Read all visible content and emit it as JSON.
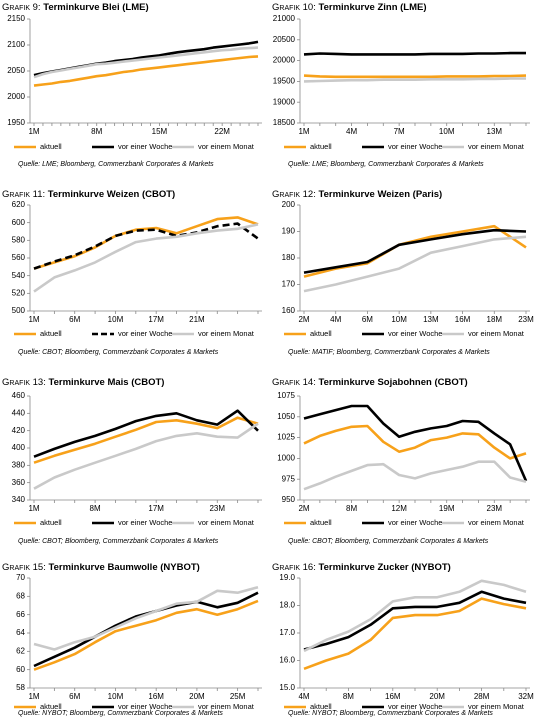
{
  "chart_data": [
    {
      "type": "line",
      "label": "Grafik 9:",
      "title": "Terminkurve Blei (LME)",
      "source": "Quelle: LME; Bloomberg, Commerzbank Corporates & Markets",
      "categories": [
        "1M",
        null,
        null,
        null,
        null,
        null,
        null,
        "8M",
        null,
        null,
        null,
        null,
        null,
        null,
        "15M",
        null,
        null,
        null,
        null,
        null,
        null,
        "22M",
        null,
        null,
        null,
        null
      ],
      "ylim": [
        1950,
        2150
      ],
      "yticks": [
        1950,
        2000,
        2050,
        2100,
        2150
      ],
      "series": [
        {
          "name": "aktuell",
          "color": "#f7a11a",
          "values": [
            2022,
            2024,
            2026,
            2029,
            2031,
            2034,
            2037,
            2040,
            2042,
            2045,
            2048,
            2050,
            2053,
            2055,
            2057,
            2059,
            2061,
            2063,
            2065,
            2067,
            2069,
            2071,
            2073,
            2075,
            2077,
            2078
          ]
        },
        {
          "name": "vor einer Woche",
          "color": "#000000",
          "values": [
            2042,
            2046,
            2049,
            2052,
            2055,
            2058,
            2061,
            2064,
            2066,
            2069,
            2071,
            2073,
            2076,
            2078,
            2080,
            2083,
            2086,
            2088,
            2090,
            2092,
            2095,
            2097,
            2099,
            2101,
            2103,
            2106
          ]
        },
        {
          "name": "vor einem Monat",
          "color": "#c9c9c9",
          "values": [
            2038,
            2044,
            2048,
            2051,
            2054,
            2057,
            2060,
            2063,
            2064,
            2066,
            2068,
            2070,
            2072,
            2074,
            2076,
            2078,
            2080,
            2082,
            2084,
            2086,
            2088,
            2090,
            2091,
            2093,
            2094,
            2095
          ]
        }
      ]
    },
    {
      "type": "line",
      "label": "Grafik 10:",
      "title": "Terminkurve Zinn (LME)",
      "source": "Quelle: LME; Bloomberg, Commerzbank Corporates & Markets",
      "categories": [
        "1M",
        null,
        null,
        "4M",
        null,
        null,
        "7M",
        null,
        null,
        "10M",
        null,
        null,
        "13M",
        null,
        null
      ],
      "ylim": [
        18500,
        21000
      ],
      "yticks": [
        18500,
        19000,
        19500,
        20000,
        20500,
        21000
      ],
      "series": [
        {
          "name": "aktuell",
          "color": "#f7a11a",
          "values": [
            19640,
            19620,
            19610,
            19610,
            19610,
            19610,
            19610,
            19610,
            19610,
            19620,
            19620,
            19620,
            19630,
            19630,
            19640
          ]
        },
        {
          "name": "vor einer Woche",
          "color": "#000000",
          "values": [
            20150,
            20170,
            20160,
            20150,
            20150,
            20150,
            20150,
            20150,
            20160,
            20160,
            20160,
            20170,
            20170,
            20180,
            20180
          ]
        },
        {
          "name": "vor einem Monat",
          "color": "#c9c9c9",
          "values": [
            19500,
            19510,
            19520,
            19530,
            19530,
            19540,
            19540,
            19540,
            19550,
            19550,
            19550,
            19560,
            19560,
            19570,
            19570
          ]
        }
      ]
    },
    {
      "type": "line",
      "label": "Grafik 11:",
      "title": "Terminkurve Weizen (CBOT)",
      "source": "Quelle: CBOT; Bloomberg, Commerzbank Corporates & Markets",
      "categories": [
        "1M",
        null,
        "6M",
        null,
        "10M",
        null,
        "17M",
        null,
        "21M",
        null,
        null,
        null
      ],
      "ylim": [
        500,
        620
      ],
      "yticks": [
        500,
        520,
        540,
        560,
        580,
        600,
        620
      ],
      "series": [
        {
          "name": "aktuell",
          "color": "#f7a11a",
          "values": [
            548,
            555,
            562,
            572,
            585,
            592,
            594,
            588,
            596,
            604,
            606,
            598
          ]
        },
        {
          "name": "vor einer Woche",
          "color": "#000000",
          "dashed": true,
          "values": [
            548,
            556,
            563,
            573,
            585,
            591,
            592,
            585,
            589,
            596,
            599,
            582
          ]
        },
        {
          "name": "vor einem Monat",
          "color": "#c9c9c9",
          "values": [
            522,
            538,
            546,
            555,
            567,
            578,
            582,
            584,
            588,
            591,
            593,
            598
          ]
        }
      ]
    },
    {
      "type": "line",
      "label": "Grafik 12:",
      "title": "Terminkurve Weizen (Paris)",
      "source": "Quelle: MATIF; Bloomberg, Commerzbank Corporates & Markets",
      "categories": [
        "2M",
        "4M",
        "6M",
        "10M",
        "13M",
        "16M",
        "18M",
        "23M"
      ],
      "ylim": [
        160,
        200
      ],
      "yticks": [
        160,
        170,
        180,
        190,
        200
      ],
      "series": [
        {
          "name": "aktuell",
          "color": "#f7a11a",
          "values": [
            173,
            176,
            178,
            185,
            188,
            190,
            192,
            184
          ]
        },
        {
          "name": "vor einer Woche",
          "color": "#000000",
          "values": [
            174.5,
            176.5,
            178.5,
            185,
            187,
            189,
            190.5,
            190
          ]
        },
        {
          "name": "vor einem Monat",
          "color": "#c9c9c9",
          "values": [
            167.5,
            170,
            173,
            176,
            182,
            184.5,
            187,
            188
          ]
        }
      ]
    },
    {
      "type": "line",
      "label": "Grafik 13:",
      "title": "Terminkurve Mais (CBOT)",
      "source": "Quelle: CBOT; Bloomberg, Commerzbank Corporates & Markets",
      "categories": [
        "1M",
        null,
        null,
        "8M",
        null,
        null,
        "17M",
        null,
        null,
        "23M",
        null,
        null
      ],
      "ylim": [
        340,
        460
      ],
      "yticks": [
        340,
        360,
        380,
        400,
        420,
        440,
        460
      ],
      "series": [
        {
          "name": "aktuell",
          "color": "#f7a11a",
          "values": [
            383,
            391,
            398,
            405,
            413,
            421,
            430,
            432,
            428,
            423,
            435,
            428
          ]
        },
        {
          "name": "vor einer Woche",
          "color": "#000000",
          "values": [
            390,
            399,
            407,
            414,
            422,
            431,
            437,
            440,
            432,
            427,
            443,
            420
          ]
        },
        {
          "name": "vor einem Monat",
          "color": "#c9c9c9",
          "values": [
            353,
            366,
            375,
            383,
            391,
            399,
            408,
            414,
            417,
            413,
            412,
            428
          ]
        }
      ]
    },
    {
      "type": "line",
      "label": "Grafik 14:",
      "title": "Terminkurve Sojabohnen (CBOT)",
      "source": "Quelle: CBOT; Bloomberg, Commerzbank Corporates & Markets",
      "categories": [
        "2M",
        null,
        null,
        "8M",
        null,
        null,
        "12M",
        null,
        null,
        "19M",
        null,
        null,
        "23M",
        null,
        null
      ],
      "ylim": [
        950,
        1075
      ],
      "yticks": [
        950,
        975,
        1000,
        1025,
        1050,
        1075
      ],
      "series": [
        {
          "name": "aktuell",
          "color": "#f7a11a",
          "values": [
            1018,
            1027,
            1033,
            1038,
            1039,
            1020,
            1008,
            1013,
            1022,
            1025,
            1030,
            1029,
            1013,
            1000,
            1006
          ]
        },
        {
          "name": "vor einer Woche",
          "color": "#000000",
          "values": [
            1048,
            1053,
            1058,
            1063,
            1063,
            1042,
            1026,
            1032,
            1036,
            1039,
            1045,
            1044,
            1030,
            1017,
            973
          ]
        },
        {
          "name": "vor einem Monat",
          "color": "#c9c9c9",
          "values": [
            963,
            970,
            978,
            985,
            992,
            993,
            980,
            976,
            982,
            986,
            990,
            996,
            996,
            977,
            972
          ]
        }
      ]
    },
    {
      "type": "line",
      "label": "Grafik 15:",
      "title": "Terminkurve Baumwolle (NYBOT)",
      "source": "Quelle: NYBOT; Bloomberg, Commerzbank Corporates & Markets",
      "categories": [
        "1M",
        null,
        "6M",
        null,
        "10M",
        null,
        "16M",
        null,
        "20M",
        null,
        "25M",
        null
      ],
      "ylim": [
        58,
        70
      ],
      "yticks": [
        58,
        60,
        62,
        64,
        66,
        68,
        70
      ],
      "series": [
        {
          "name": "aktuell",
          "color": "#f7a11a",
          "values": [
            60,
            60.8,
            61.7,
            63,
            64.2,
            64.8,
            65.4,
            66.2,
            66.6,
            66,
            66.6,
            67.5
          ]
        },
        {
          "name": "vor einer Woche",
          "color": "#000000",
          "values": [
            60.4,
            61.4,
            62.4,
            63.6,
            64.8,
            65.8,
            66.4,
            67,
            67.4,
            66.8,
            67.3,
            68.4
          ]
        },
        {
          "name": "vor einem Monat",
          "color": "#c9c9c9",
          "values": [
            62.8,
            62.2,
            63,
            63.6,
            64.6,
            65.6,
            66.4,
            67.2,
            67.4,
            68.6,
            68.4,
            69
          ]
        }
      ]
    },
    {
      "type": "line",
      "label": "Grafik 16:",
      "title": "Terminkurve Zucker (NYBOT)",
      "source": "Quelle: NYBOT; Bloomberg, Commerzbank Corporates & Markets",
      "categories": [
        "4M",
        null,
        "8M",
        null,
        "16M",
        null,
        "20M",
        null,
        "28M",
        null,
        "32M"
      ],
      "ylim": [
        15,
        19
      ],
      "yticks": [
        {
          "value": 15,
          "label": "15.0"
        },
        {
          "value": 16,
          "label": "16.0"
        },
        {
          "value": 17,
          "label": "17.0"
        },
        {
          "value": 18,
          "label": "18.0"
        },
        {
          "value": 19,
          "label": "19.0"
        }
      ],
      "series": [
        {
          "name": "aktuell",
          "color": "#f7a11a",
          "values": [
            15.7,
            16,
            16.25,
            16.75,
            17.55,
            17.65,
            17.65,
            17.8,
            18.25,
            18.05,
            17.9
          ]
        },
        {
          "name": "vor einer Woche",
          "color": "#000000",
          "values": [
            16.4,
            16.6,
            16.85,
            17.3,
            17.9,
            17.95,
            17.95,
            18.1,
            18.5,
            18.25,
            18.1
          ]
        },
        {
          "name": "vor einem Monat",
          "color": "#c9c9c9",
          "values": [
            16.35,
            16.75,
            17.05,
            17.5,
            18.15,
            18.3,
            18.3,
            18.5,
            18.9,
            18.75,
            18.5
          ]
        }
      ]
    }
  ]
}
